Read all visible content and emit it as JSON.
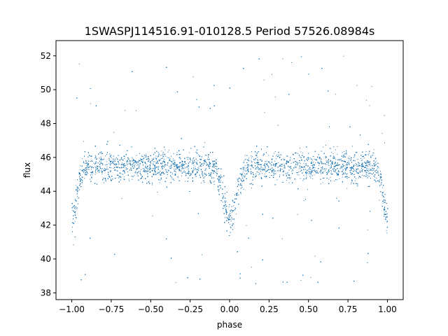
{
  "chart_data": {
    "type": "scatter",
    "title": "1SWASPJ114516.91-010128.5 Period 57526.08984s",
    "xlabel": "phase",
    "ylabel": "flux",
    "xlim": [
      -1.1,
      1.1
    ],
    "ylim": [
      37.6,
      52.9
    ],
    "x_ticks": [
      "−1.00",
      "−0.75",
      "−0.50",
      "−0.25",
      "0.00",
      "0.25",
      "0.50",
      "0.75",
      "1.00"
    ],
    "x_tick_values": [
      -1.0,
      -0.75,
      -0.5,
      -0.25,
      0.0,
      0.25,
      0.5,
      0.75,
      1.0
    ],
    "y_ticks": [
      "38",
      "40",
      "42",
      "44",
      "46",
      "48",
      "50",
      "52"
    ],
    "y_tick_values": [
      38,
      40,
      42,
      44,
      46,
      48,
      50,
      52
    ],
    "grid": false,
    "marker_color": "#1f77b4",
    "series": [
      {
        "baseline_flux": 45.5,
        "scatter_sigma": 0.9,
        "phase_range": [
          -1.0,
          1.0
        ],
        "eclipses": [
          {
            "phase": -1.0,
            "depth": 3.0,
            "half_width": 0.06
          },
          {
            "phase": 0.0,
            "depth": 3.2,
            "half_width": 0.08
          },
          {
            "phase": 1.0,
            "depth": 3.0,
            "half_width": 0.06
          }
        ],
        "outlier_range": [
          38.4,
          52.2
        ]
      }
    ]
  }
}
